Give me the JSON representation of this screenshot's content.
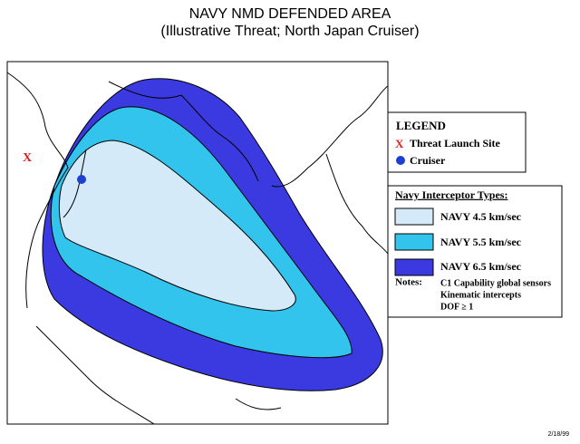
{
  "header": {
    "title": "NAVY NMD DEFENDED AREA",
    "subtitle": "(Illustrative Threat; North Japan Cruiser)"
  },
  "map": {
    "launch_marker": "X"
  },
  "legend": {
    "title": "LEGEND",
    "items": [
      {
        "marker": "X",
        "label": "Threat Launch Site"
      },
      {
        "label": "Cruiser"
      }
    ]
  },
  "interceptors": {
    "title": "Navy Interceptor Types:",
    "items": [
      {
        "label": "NAVY 4.5 km/sec",
        "color": "#d4eaf8"
      },
      {
        "label": "NAVY 5.5 km/sec",
        "color": "#33c4ee"
      },
      {
        "label": "NAVY 6.5 km/sec",
        "color": "#3a3ae0"
      }
    ],
    "notes_label": "Notes:",
    "notes": [
      "C1 Capability global sensors",
      "Kinematic intercepts",
      "DOF ≥  1"
    ]
  },
  "footer": {
    "date": "2/18/99"
  }
}
